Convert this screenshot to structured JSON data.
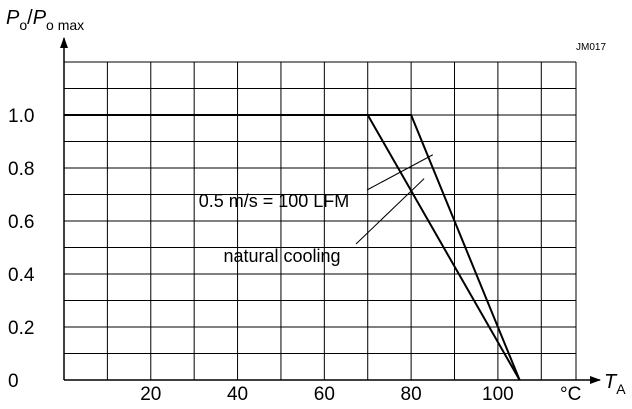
{
  "chart_data": {
    "type": "line",
    "title": "",
    "figure_id": "JM017",
    "ylabel": {
      "main": "P",
      "main_sub": "o",
      "denom": "P",
      "denom_sub": "o max"
    },
    "xlabel": {
      "main": "T",
      "sub": "A"
    },
    "x_unit": "°C",
    "xlim": [
      0,
      118
    ],
    "ylim": [
      0,
      1.2
    ],
    "x_ticks": [
      20,
      40,
      60,
      80,
      100
    ],
    "y_ticks": [
      0,
      0.2,
      0.4,
      0.6,
      0.8,
      1.0
    ],
    "x_tick_labels": [
      "20",
      "40",
      "60",
      "80",
      "100"
    ],
    "y_tick_labels": [
      "0",
      "0.2",
      "0.4",
      "0.6",
      "0.8",
      "1.0"
    ],
    "grid": true,
    "series": [
      {
        "x": [
          0,
          70,
          80,
          105
        ],
        "y": [
          1.0,
          1.0,
          1.0,
          0
        ]
      },
      {
        "x": [
          70,
          105
        ],
        "y": [
          1.0,
          0
        ]
      }
    ],
    "annotations": [
      {
        "text": "0.5 m/s = 100 LFM",
        "target": [
          85,
          0.85
        ]
      },
      {
        "text": "natural cooling",
        "target": [
          83,
          0.76
        ]
      }
    ]
  }
}
